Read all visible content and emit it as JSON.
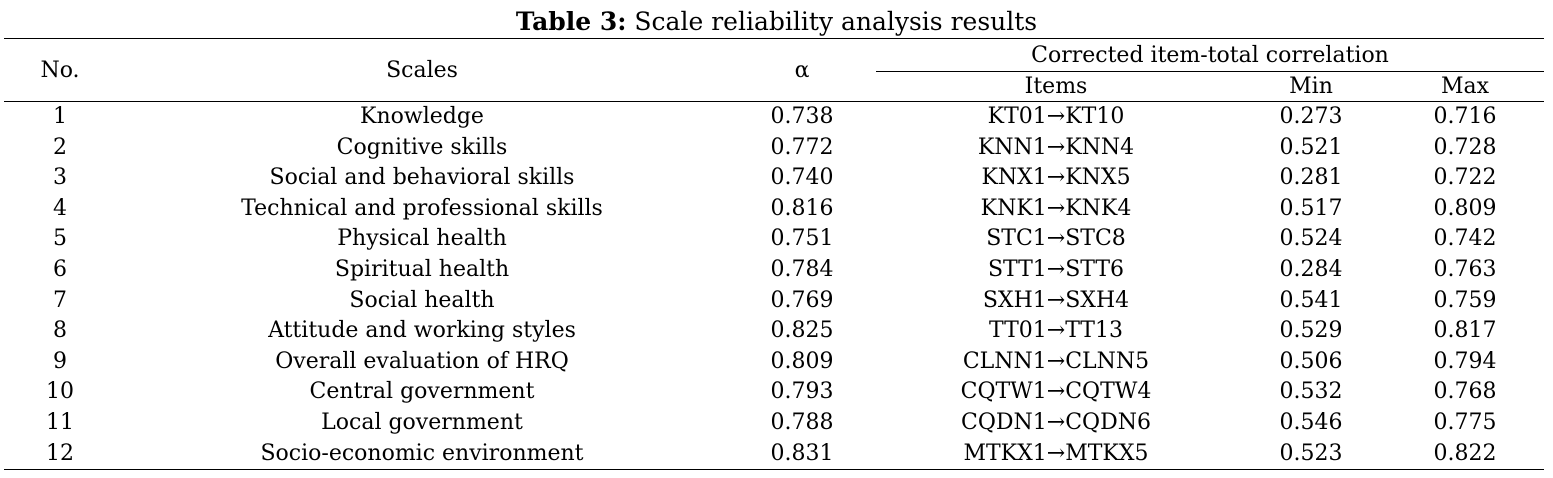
{
  "caption": {
    "label": "Table 3:",
    "text": " Scale reliability analysis results"
  },
  "table": {
    "headers": {
      "no": "No.",
      "scales": "Scales",
      "alpha": "α",
      "group": "Corrected item-total correlation",
      "items": "Items",
      "min": "Min",
      "max": "Max"
    },
    "rows": [
      {
        "no": "1",
        "scale": "Knowledge",
        "alpha": "0.738",
        "items": "KT01→KT10",
        "min": "0.273",
        "max": "0.716"
      },
      {
        "no": "2",
        "scale": "Cognitive skills",
        "alpha": "0.772",
        "items": "KNN1→KNN4",
        "min": "0.521",
        "max": "0.728"
      },
      {
        "no": "3",
        "scale": "Social and behavioral skills",
        "alpha": "0.740",
        "items": "KNX1→KNX5",
        "min": "0.281",
        "max": "0.722"
      },
      {
        "no": "4",
        "scale": "Technical and professional skills",
        "alpha": "0.816",
        "items": "KNK1→KNK4",
        "min": "0.517",
        "max": "0.809"
      },
      {
        "no": "5",
        "scale": "Physical health",
        "alpha": "0.751",
        "items": "STC1→STC8",
        "min": "0.524",
        "max": "0.742"
      },
      {
        "no": "6",
        "scale": "Spiritual health",
        "alpha": "0.784",
        "items": "STT1→STT6",
        "min": "0.284",
        "max": "0.763"
      },
      {
        "no": "7",
        "scale": "Social health",
        "alpha": "0.769",
        "items": "SXH1→SXH4",
        "min": "0.541",
        "max": "0.759"
      },
      {
        "no": "8",
        "scale": "Attitude and working styles",
        "alpha": "0.825",
        "items": "TT01→TT13",
        "min": "0.529",
        "max": "0.817"
      },
      {
        "no": "9",
        "scale": "Overall evaluation of HRQ",
        "alpha": "0.809",
        "items": "CLNN1→CLNN5",
        "min": "0.506",
        "max": "0.794"
      },
      {
        "no": "10",
        "scale": "Central government",
        "alpha": "0.793",
        "items": "CQTW1→CQTW4",
        "min": "0.532",
        "max": "0.768"
      },
      {
        "no": "11",
        "scale": "Local government",
        "alpha": "0.788",
        "items": "CQDN1→CQDN6",
        "min": "0.546",
        "max": "0.775"
      },
      {
        "no": "12",
        "scale": "Socio-economic environment",
        "alpha": "0.831",
        "items": "MTKX1→MTKX5",
        "min": "0.523",
        "max": "0.822"
      }
    ]
  }
}
